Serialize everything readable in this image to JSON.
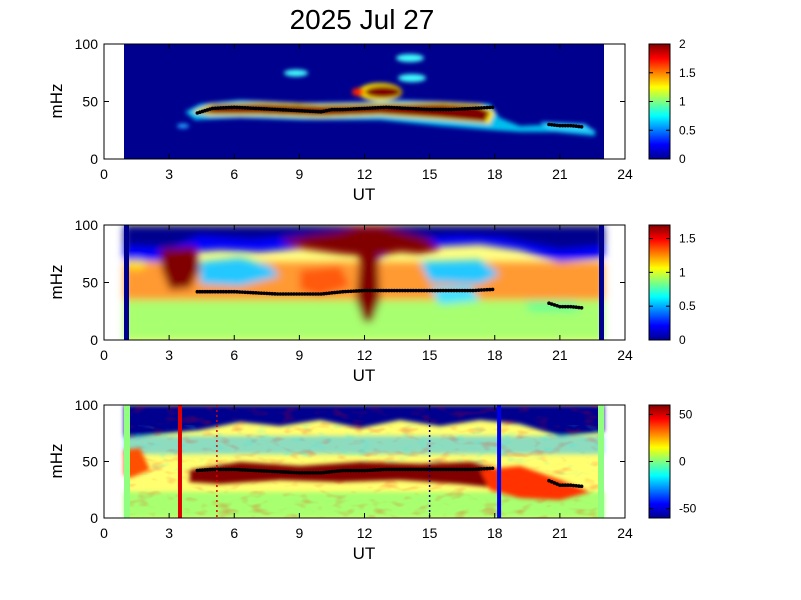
{
  "chart_data": {
    "title": "2025 Jul 27",
    "panels": [
      {
        "type": "heatmap",
        "xlabel": "UT",
        "ylabel": "mHz",
        "xlim": [
          0,
          24
        ],
        "ylim": [
          0,
          100
        ],
        "xticks": [
          "0",
          "3",
          "6",
          "9",
          "12",
          "15",
          "18",
          "21",
          "24"
        ],
        "yticks": [
          "0",
          "50",
          "100"
        ],
        "data_range_ut": [
          1,
          23
        ],
        "colorbar": {
          "min": 0,
          "max": 2,
          "ticks": [
            "0",
            "0.5",
            "1",
            "1.5",
            "2"
          ]
        },
        "ridge": {
          "ut": [
            4.3,
            5,
            6,
            7,
            8,
            9,
            10,
            10.5,
            11,
            12,
            13,
            14,
            15,
            16,
            17,
            17.9
          ],
          "mhz": [
            40,
            44,
            45,
            44,
            43,
            42,
            41,
            43,
            43,
            44,
            45,
            44,
            43,
            43,
            44,
            45
          ]
        },
        "ridge2": {
          "ut": [
            20.5,
            21,
            21.5,
            22
          ],
          "mhz": [
            30,
            29,
            29,
            28
          ]
        }
      },
      {
        "type": "heatmap",
        "xlabel": "UT",
        "ylabel": "mHz",
        "xlim": [
          0,
          24
        ],
        "ylim": [
          0,
          100
        ],
        "xticks": [
          "0",
          "3",
          "6",
          "9",
          "12",
          "15",
          "18",
          "21",
          "24"
        ],
        "yticks": [
          "0",
          "50",
          "100"
        ],
        "data_range_ut": [
          1,
          23
        ],
        "colorbar": {
          "min": 0,
          "max": 1.7,
          "ticks": [
            "0",
            "0.5",
            "1",
            "1.5"
          ]
        },
        "ridge": {
          "ut": [
            4.3,
            5,
            6,
            7,
            8,
            9,
            10,
            10.5,
            11,
            12,
            13,
            14,
            15,
            16,
            17,
            17.9
          ],
          "mhz": [
            42,
            42,
            42,
            41,
            40,
            40,
            40,
            41,
            42,
            43,
            43,
            43,
            43,
            43,
            43,
            44
          ]
        },
        "ridge2": {
          "ut": [
            20.5,
            21,
            21.5,
            22
          ],
          "mhz": [
            32,
            29,
            29,
            28
          ]
        }
      },
      {
        "type": "heatmap",
        "xlabel": "UT",
        "ylabel": "mHz",
        "xlim": [
          0,
          24
        ],
        "ylim": [
          0,
          100
        ],
        "xticks": [
          "0",
          "3",
          "6",
          "9",
          "12",
          "15",
          "18",
          "21",
          "24"
        ],
        "yticks": [
          "0",
          "50",
          "100"
        ],
        "data_range_ut": [
          1,
          23
        ],
        "colorbar": {
          "min": -60,
          "max": 60,
          "ticks": [
            "-50",
            "0",
            "50"
          ]
        },
        "ridge": {
          "ut": [
            4.3,
            5,
            6,
            7,
            8,
            9,
            10,
            10.5,
            11,
            12,
            13,
            14,
            15,
            16,
            17,
            17.9
          ],
          "mhz": [
            42,
            43,
            43,
            42,
            41,
            40,
            40,
            41,
            42,
            42,
            43,
            43,
            43,
            43,
            43,
            44
          ]
        },
        "ridge2": {
          "ut": [
            20.5,
            21,
            21.5,
            22
          ],
          "mhz": [
            33,
            29,
            29,
            28
          ]
        },
        "markers": [
          {
            "ut": 3.5,
            "style": "solid",
            "color": "#e00000"
          },
          {
            "ut": 5.2,
            "style": "dotted",
            "color": "#e00000"
          },
          {
            "ut": 15.0,
            "style": "dotted",
            "color": "#000080"
          },
          {
            "ut": 18.2,
            "style": "solid",
            "color": "#0000ee"
          }
        ]
      }
    ]
  }
}
